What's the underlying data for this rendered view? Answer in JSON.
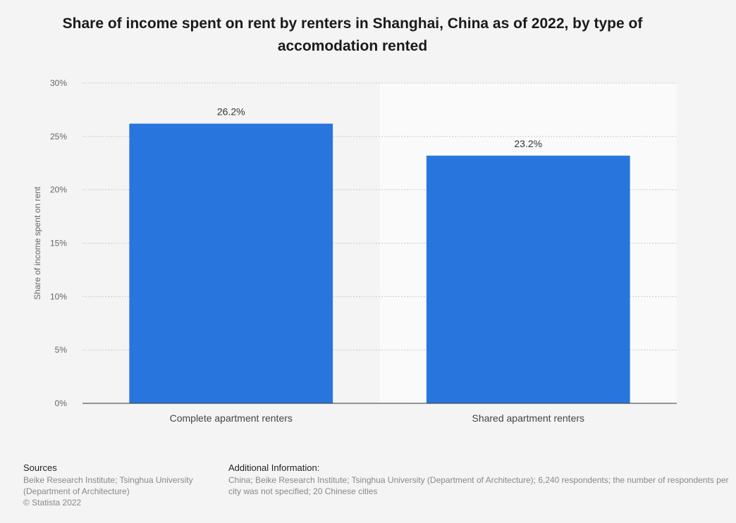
{
  "chart_data": {
    "type": "bar",
    "title": "Share of income spent on rent by renters in Shanghai, China as of 2022, by type of accomodation rented",
    "categories": [
      "Complete apartment renters",
      "Shared apartment renters"
    ],
    "values": [
      26.2,
      23.2
    ],
    "data_labels": [
      "26.2%",
      "23.2%"
    ],
    "xlabel": "",
    "ylabel": "Share of income spent on rent",
    "ylim": [
      0,
      30
    ],
    "yticks": [
      "0%",
      "5%",
      "10%",
      "15%",
      "20%",
      "25%",
      "30%"
    ],
    "grid": true,
    "bar_color": "#2876dd"
  },
  "footer": {
    "sources_heading": "Sources",
    "sources_text": "Beike Research Institute; Tsinghua University (Department of Architecture)",
    "copyright": "© Statista 2022",
    "additional_heading": "Additional Information:",
    "additional_text": "China; Beike Research Institute; Tsinghua University (Department of Architecture); 6,240 respondents; the number of respondents per city was not specified; 20 Chinese cities"
  }
}
